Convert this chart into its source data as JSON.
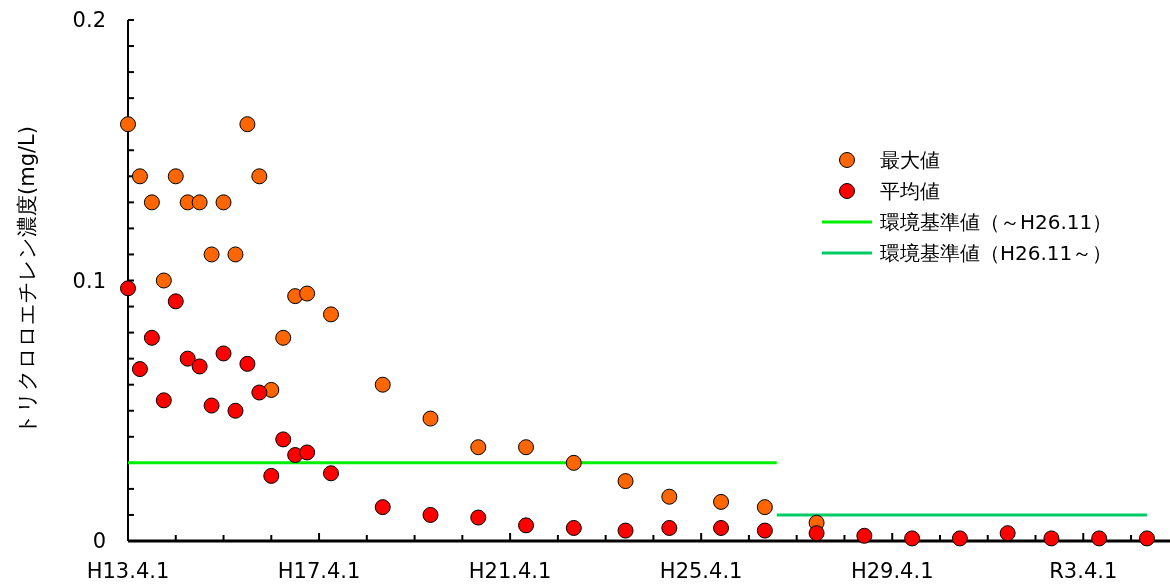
{
  "chart_data": {
    "type": "scatter",
    "ylabel": "トリクロロエチレン濃度(mg/L)",
    "x": [
      "2001-04",
      "2001-07",
      "2001-10",
      "2002-01",
      "2002-04",
      "2002-07",
      "2002-10",
      "2003-01",
      "2003-04",
      "2003-07",
      "2003-10",
      "2004-01",
      "2004-04",
      "2004-07",
      "2004-10",
      "2005-01",
      "2005-07",
      "2006-08",
      "2007-08",
      "2008-08",
      "2009-08",
      "2010-08",
      "2011-09",
      "2012-08",
      "2013-09",
      "2014-08",
      "2015-09",
      "2016-09",
      "2017-09",
      "2018-09",
      "2019-09",
      "2020-08",
      "2021-08",
      "2022-08"
    ],
    "series": [
      {
        "name": "最大値",
        "color": "#ff6600",
        "values": [
          0.16,
          0.14,
          0.13,
          0.1,
          0.14,
          0.13,
          0.13,
          0.11,
          0.13,
          0.11,
          0.16,
          0.14,
          0.058,
          0.078,
          0.094,
          0.095,
          0.087,
          0.06,
          0.047,
          0.036,
          0.036,
          0.03,
          0.023,
          0.017,
          0.015,
          0.013,
          0.007,
          null,
          null,
          null,
          null,
          null,
          null,
          null
        ]
      },
      {
        "name": "平均値",
        "color": "#ff0000",
        "values": [
          0.097,
          0.066,
          0.078,
          0.054,
          0.092,
          0.07,
          0.067,
          0.052,
          0.072,
          0.05,
          0.068,
          0.057,
          0.025,
          0.039,
          0.033,
          0.034,
          0.026,
          0.013,
          0.01,
          0.009,
          0.006,
          0.005,
          0.004,
          0.005,
          0.005,
          0.004,
          0.003,
          0.002,
          0.001,
          0.001,
          0.003,
          0.001,
          0.001,
          0.001
        ]
      },
      {
        "name": "環境基準値（～H26.11）",
        "type": "line",
        "marker": "none",
        "color": "#00ee00",
        "x": [
          "2001-04",
          "2014-11"
        ],
        "values": [
          0.03,
          0.03
        ]
      },
      {
        "name": "環境基準値（H26.11～）",
        "type": "line",
        "marker": "none",
        "color": "#00cc66",
        "x": [
          "2014-11",
          "2022-08"
        ],
        "values": [
          0.01,
          0.01
        ]
      }
    ],
    "xlim": [
      "2001-04-01",
      "2023-01-25"
    ],
    "xticks": [
      {
        "value": "2001-04-01",
        "label": "H13.4.1"
      },
      {
        "value": "2002-04-01",
        "label": null
      },
      {
        "value": "2003-04-01",
        "label": null
      },
      {
        "value": "2004-04-01",
        "label": null
      },
      {
        "value": "2005-04-01",
        "label": "H17.4.1"
      },
      {
        "value": "2006-04-01",
        "label": null
      },
      {
        "value": "2007-04-01",
        "label": null
      },
      {
        "value": "2008-04-01",
        "label": null
      },
      {
        "value": "2009-04-01",
        "label": "H21.4.1"
      },
      {
        "value": "2010-04-01",
        "label": null
      },
      {
        "value": "2011-04-01",
        "label": null
      },
      {
        "value": "2012-04-01",
        "label": null
      },
      {
        "value": "2013-04-01",
        "label": "H25.4.1"
      },
      {
        "value": "2014-04-01",
        "label": null
      },
      {
        "value": "2015-04-01",
        "label": null
      },
      {
        "value": "2016-04-01",
        "label": null
      },
      {
        "value": "2017-04-01",
        "label": "H29.4.1"
      },
      {
        "value": "2018-04-01",
        "label": null
      },
      {
        "value": "2019-04-01",
        "label": null
      },
      {
        "value": "2020-04-01",
        "label": null
      },
      {
        "value": "2021-04-01",
        "label": "R3.4.1"
      },
      {
        "value": "2022-04-01",
        "label": null
      }
    ],
    "ylim": [
      0,
      0.2
    ],
    "yticks": [
      0,
      {
        "value": 0.01,
        "label": null
      },
      {
        "value": 0.02,
        "label": null
      },
      {
        "value": 0.03,
        "label": null
      },
      {
        "value": 0.04,
        "label": null
      },
      {
        "value": 0.05,
        "label": null
      },
      {
        "value": 0.06,
        "label": null
      },
      {
        "value": 0.07,
        "label": null
      },
      {
        "value": 0.08,
        "label": null
      },
      {
        "value": 0.09,
        "label": null
      },
      0.1,
      {
        "value": 0.11,
        "label": null
      },
      {
        "value": 0.12,
        "label": null
      },
      {
        "value": 0.13,
        "label": null
      },
      {
        "value": 0.14,
        "label": null
      },
      {
        "value": 0.15,
        "label": null
      },
      {
        "value": 0.16,
        "label": null
      },
      {
        "value": 0.17,
        "label": null
      },
      {
        "value": 0.18,
        "label": null
      },
      {
        "value": 0.19,
        "label": null
      },
      0.2
    ],
    "marker": "circle",
    "grid": false,
    "legend": "right"
  }
}
